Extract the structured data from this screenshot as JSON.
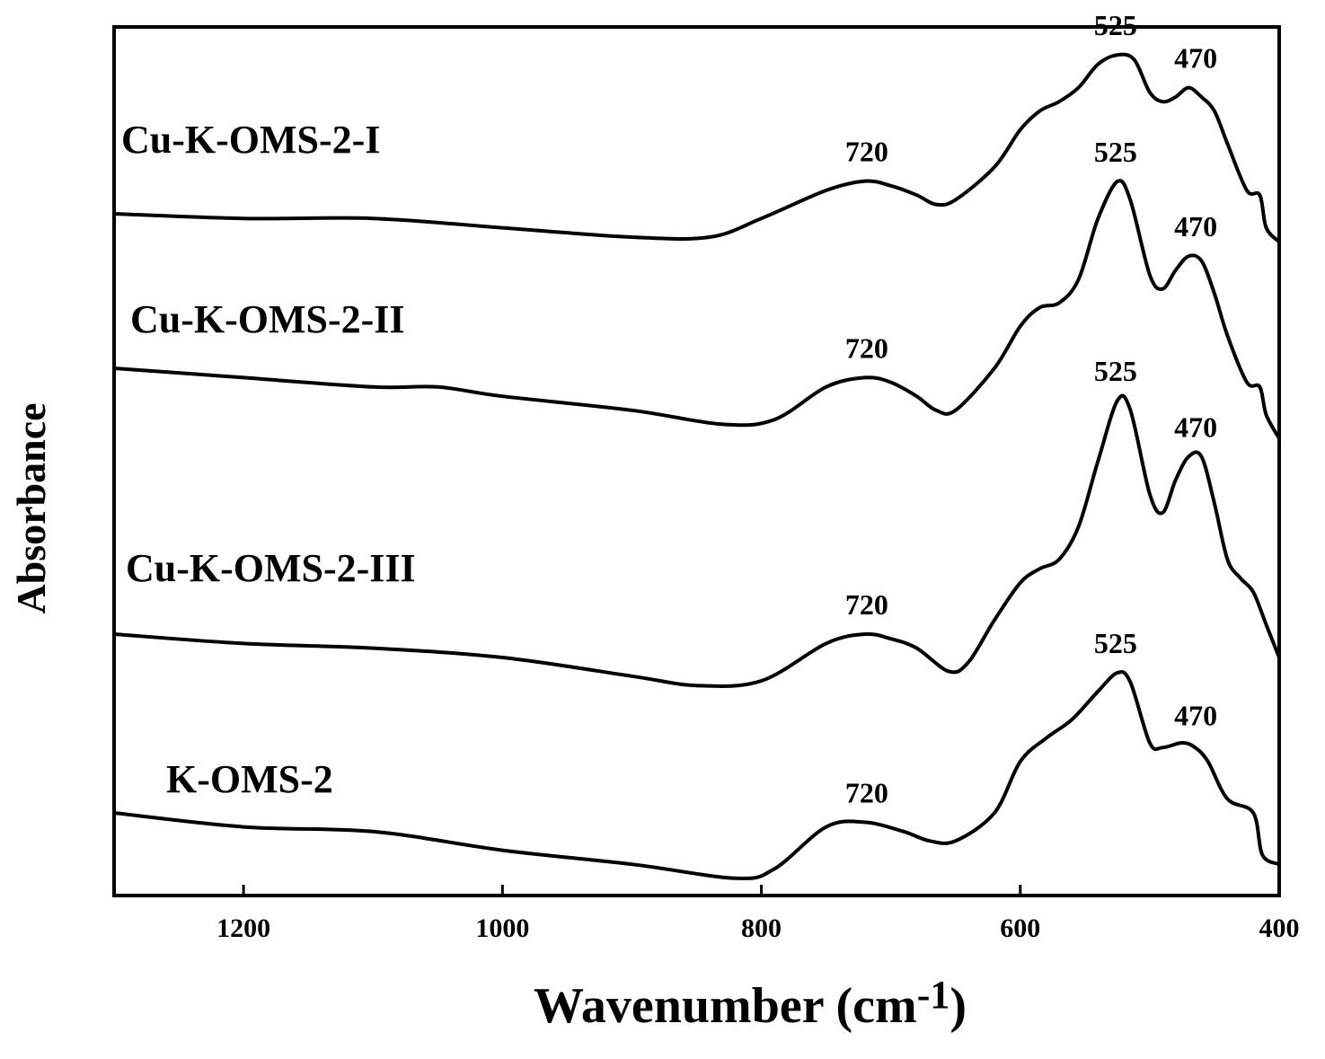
{
  "chart_data": {
    "type": "line",
    "xlabel": "Wavenumber (cm",
    "xlabel_sup": "-1",
    "xlabel_close": ")",
    "ylabel": "Absorbance",
    "xlim": [
      1300,
      400
    ],
    "x_reversed": true,
    "y_ticks_shown": false,
    "grid": false,
    "x_ticks": [
      1200,
      1000,
      800,
      600,
      400
    ],
    "x_tick_labels": [
      "1200",
      "1000",
      "800",
      "600",
      "400"
    ],
    "series": [
      {
        "name": "Cu-K-OMS-2-I",
        "points": [
          [
            1300,
            0.0
          ],
          [
            1200,
            -0.01
          ],
          [
            1100,
            -0.01
          ],
          [
            1000,
            -0.03
          ],
          [
            900,
            -0.05
          ],
          [
            840,
            -0.05
          ],
          [
            800,
            -0.01
          ],
          [
            750,
            0.05
          ],
          [
            720,
            0.07
          ],
          [
            700,
            0.06
          ],
          [
            680,
            0.04
          ],
          [
            665,
            0.02
          ],
          [
            650,
            0.03
          ],
          [
            620,
            0.1
          ],
          [
            600,
            0.18
          ],
          [
            585,
            0.22
          ],
          [
            570,
            0.24
          ],
          [
            555,
            0.27
          ],
          [
            540,
            0.32
          ],
          [
            525,
            0.34
          ],
          [
            512,
            0.33
          ],
          [
            500,
            0.26
          ],
          [
            490,
            0.24
          ],
          [
            480,
            0.25
          ],
          [
            470,
            0.27
          ],
          [
            460,
            0.25
          ],
          [
            450,
            0.22
          ],
          [
            440,
            0.15
          ],
          [
            425,
            0.05
          ],
          [
            415,
            0.04
          ],
          [
            410,
            -0.03
          ],
          [
            400,
            -0.06
          ]
        ],
        "peak_labels": [
          {
            "x": 720,
            "text": "720"
          },
          {
            "x": 525,
            "text": "525"
          },
          {
            "x": 470,
            "text": "470"
          }
        ]
      },
      {
        "name": "Cu-K-OMS-2-II",
        "points": [
          [
            1300,
            0.0
          ],
          [
            1200,
            -0.02
          ],
          [
            1100,
            -0.04
          ],
          [
            1050,
            -0.04
          ],
          [
            1000,
            -0.06
          ],
          [
            900,
            -0.09
          ],
          [
            830,
            -0.12
          ],
          [
            790,
            -0.11
          ],
          [
            750,
            -0.04
          ],
          [
            720,
            -0.02
          ],
          [
            700,
            -0.03
          ],
          [
            680,
            -0.06
          ],
          [
            665,
            -0.09
          ],
          [
            650,
            -0.09
          ],
          [
            620,
            0.0
          ],
          [
            600,
            0.09
          ],
          [
            585,
            0.13
          ],
          [
            570,
            0.14
          ],
          [
            555,
            0.19
          ],
          [
            540,
            0.32
          ],
          [
            525,
            0.4
          ],
          [
            515,
            0.36
          ],
          [
            500,
            0.2
          ],
          [
            490,
            0.17
          ],
          [
            480,
            0.21
          ],
          [
            470,
            0.24
          ],
          [
            460,
            0.23
          ],
          [
            450,
            0.16
          ],
          [
            440,
            0.07
          ],
          [
            425,
            -0.03
          ],
          [
            415,
            -0.04
          ],
          [
            410,
            -0.1
          ],
          [
            400,
            -0.15
          ]
        ],
        "peak_labels": [
          {
            "x": 720,
            "text": "720"
          },
          {
            "x": 525,
            "text": "525"
          },
          {
            "x": 470,
            "text": "470"
          }
        ]
      },
      {
        "name": "Cu-K-OMS-2-III",
        "points": [
          [
            1300,
            0.0
          ],
          [
            1200,
            -0.02
          ],
          [
            1100,
            -0.03
          ],
          [
            1000,
            -0.05
          ],
          [
            900,
            -0.09
          ],
          [
            850,
            -0.11
          ],
          [
            800,
            -0.1
          ],
          [
            750,
            -0.02
          ],
          [
            720,
            0.0
          ],
          [
            700,
            -0.01
          ],
          [
            680,
            -0.03
          ],
          [
            655,
            -0.08
          ],
          [
            640,
            -0.06
          ],
          [
            620,
            0.03
          ],
          [
            600,
            0.11
          ],
          [
            585,
            0.14
          ],
          [
            570,
            0.16
          ],
          [
            555,
            0.23
          ],
          [
            540,
            0.37
          ],
          [
            525,
            0.5
          ],
          [
            515,
            0.48
          ],
          [
            500,
            0.3
          ],
          [
            490,
            0.26
          ],
          [
            480,
            0.33
          ],
          [
            470,
            0.38
          ],
          [
            460,
            0.38
          ],
          [
            450,
            0.28
          ],
          [
            440,
            0.16
          ],
          [
            430,
            0.12
          ],
          [
            420,
            0.09
          ],
          [
            410,
            0.02
          ],
          [
            400,
            -0.05
          ]
        ],
        "peak_labels": [
          {
            "x": 720,
            "text": "720"
          },
          {
            "x": 525,
            "text": "525"
          },
          {
            "x": 470,
            "text": "470"
          }
        ]
      },
      {
        "name": "K-OMS-2",
        "points": [
          [
            1300,
            0.0
          ],
          [
            1200,
            -0.03
          ],
          [
            1100,
            -0.04
          ],
          [
            1000,
            -0.08
          ],
          [
            900,
            -0.11
          ],
          [
            820,
            -0.14
          ],
          [
            790,
            -0.12
          ],
          [
            750,
            -0.03
          ],
          [
            720,
            -0.02
          ],
          [
            690,
            -0.04
          ],
          [
            670,
            -0.06
          ],
          [
            650,
            -0.06
          ],
          [
            620,
            0.0
          ],
          [
            600,
            0.11
          ],
          [
            580,
            0.16
          ],
          [
            560,
            0.2
          ],
          [
            540,
            0.26
          ],
          [
            525,
            0.3
          ],
          [
            515,
            0.28
          ],
          [
            500,
            0.15
          ],
          [
            490,
            0.14
          ],
          [
            475,
            0.15
          ],
          [
            465,
            0.14
          ],
          [
            455,
            0.11
          ],
          [
            440,
            0.03
          ],
          [
            420,
            0.0
          ],
          [
            413,
            -0.09
          ],
          [
            400,
            -0.11
          ]
        ],
        "peak_labels": [
          {
            "x": 720,
            "text": "720"
          },
          {
            "x": 525,
            "text": "525"
          },
          {
            "x": 470,
            "text": "470"
          }
        ]
      }
    ]
  }
}
